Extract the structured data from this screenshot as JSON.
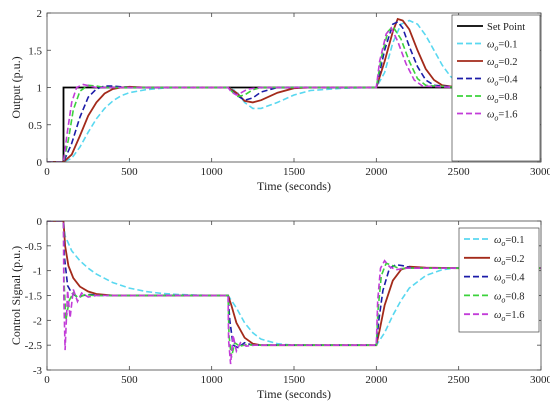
{
  "chart_data": [
    {
      "type": "line",
      "xlabel": "Time (seconds)",
      "ylabel": "Output (p.u.)",
      "xlim": [
        0,
        3000
      ],
      "ylim": [
        0,
        2
      ],
      "xticks": [
        "0",
        "500",
        "1000",
        "1500",
        "2000",
        "2500",
        "3000"
      ],
      "yticks": [
        "0",
        "0.5",
        "1",
        "1.5",
        "2"
      ],
      "grid": false,
      "legend_position": "top-right",
      "series": [
        {
          "name": "Set Point",
          "sub": "",
          "suffix": "",
          "color": "#000000",
          "dash": "solid",
          "x": [
            0,
            100,
            100,
            3000
          ],
          "y": [
            0,
            0,
            1,
            1
          ]
        },
        {
          "name": "ω",
          "sub": "o",
          "suffix": "=0.1",
          "color": "#59d8f0",
          "dash": "dashed",
          "x": [
            0,
            100,
            150,
            200,
            250,
            300,
            350,
            400,
            450,
            500,
            600,
            700,
            800,
            1000,
            1100,
            1150,
            1200,
            1250,
            1300,
            1400,
            1500,
            1600,
            1800,
            2000,
            2050,
            2100,
            2150,
            2200,
            2250,
            2300,
            2350,
            2400,
            2450,
            2500,
            2600,
            2800,
            3000
          ],
          "y": [
            0,
            0,
            0.05,
            0.2,
            0.4,
            0.58,
            0.72,
            0.82,
            0.89,
            0.93,
            0.97,
            0.99,
            1.0,
            1.0,
            1.0,
            0.95,
            0.8,
            0.72,
            0.72,
            0.8,
            0.9,
            0.96,
            0.99,
            1.0,
            1.2,
            1.6,
            1.85,
            1.9,
            1.85,
            1.7,
            1.5,
            1.3,
            1.15,
            1.06,
            1.01,
            1.0,
            1.0
          ]
        },
        {
          "name": "ω",
          "sub": "o",
          "suffix": "=0.2",
          "color": "#a32a1a",
          "dash": "solid",
          "x": [
            0,
            100,
            150,
            200,
            250,
            300,
            350,
            400,
            450,
            500,
            600,
            700,
            1100,
            1150,
            1200,
            1250,
            1300,
            1400,
            1500,
            1600,
            2000,
            2050,
            2100,
            2130,
            2160,
            2200,
            2250,
            2300,
            2350,
            2400,
            2500,
            2600,
            3000
          ],
          "y": [
            0,
            0,
            0.1,
            0.35,
            0.62,
            0.8,
            0.92,
            0.98,
            1.0,
            1.01,
            1.0,
            1.0,
            1.0,
            0.93,
            0.82,
            0.8,
            0.83,
            0.93,
            0.99,
            1.0,
            1.0,
            1.35,
            1.75,
            1.92,
            1.9,
            1.78,
            1.5,
            1.25,
            1.1,
            1.03,
            1.0,
            1.0,
            1.0
          ]
        },
        {
          "name": "ω",
          "sub": "o",
          "suffix": "=0.4",
          "color": "#1c1ca8",
          "dash": "dashed",
          "x": [
            0,
            100,
            150,
            200,
            250,
            300,
            350,
            400,
            450,
            500,
            600,
            1100,
            1150,
            1200,
            1250,
            1300,
            1400,
            2000,
            2050,
            2100,
            2130,
            2160,
            2200,
            2250,
            2300,
            2350,
            2500,
            3000
          ],
          "y": [
            0,
            0,
            0.25,
            0.6,
            0.87,
            0.98,
            1.02,
            1.02,
            1.01,
            1.0,
            1.0,
            1.0,
            0.9,
            0.83,
            0.86,
            0.94,
            1.0,
            1.0,
            1.5,
            1.85,
            1.88,
            1.8,
            1.55,
            1.28,
            1.1,
            1.03,
            1.0,
            1.0
          ]
        },
        {
          "name": "ω",
          "sub": "o",
          "suffix": "=0.8",
          "color": "#3cd23c",
          "dash": "dashed",
          "x": [
            0,
            100,
            130,
            160,
            200,
            250,
            300,
            350,
            400,
            500,
            1100,
            1130,
            1160,
            1200,
            1250,
            1300,
            2000,
            2030,
            2070,
            2100,
            2150,
            2200,
            2250,
            2300,
            2500,
            3000
          ],
          "y": [
            0,
            0,
            0.3,
            0.7,
            0.95,
            1.03,
            1.02,
            1.0,
            1.0,
            1.0,
            1.0,
            0.93,
            0.88,
            0.9,
            0.97,
            1.0,
            1.0,
            1.4,
            1.75,
            1.82,
            1.65,
            1.35,
            1.12,
            1.03,
            1.0,
            1.0
          ]
        },
        {
          "name": "ω",
          "sub": "o",
          "suffix": "=1.6",
          "color": "#c23cd8",
          "dash": "dashed",
          "x": [
            0,
            100,
            120,
            150,
            180,
            220,
            260,
            300,
            400,
            1100,
            1120,
            1150,
            1180,
            1220,
            1300,
            2000,
            2020,
            2060,
            2090,
            2130,
            2180,
            2230,
            2280,
            2500,
            3000
          ],
          "y": [
            0,
            0,
            0.35,
            0.8,
            1.0,
            1.04,
            1.02,
            1.0,
            1.0,
            1.0,
            0.94,
            0.9,
            0.93,
            0.98,
            1.0,
            1.0,
            1.35,
            1.72,
            1.8,
            1.62,
            1.32,
            1.1,
            1.02,
            1.0,
            1.0
          ]
        }
      ]
    },
    {
      "type": "line",
      "xlabel": "Time (seconds)",
      "ylabel": "Control Signal (p.u.)",
      "xlim": [
        0,
        3000
      ],
      "ylim": [
        -3,
        0
      ],
      "xticks": [
        "0",
        "500",
        "1000",
        "1500",
        "2000",
        "2500",
        "3000"
      ],
      "yticks": [
        "0",
        "-0.5",
        "-1",
        "-1.5",
        "-2",
        "-2.5",
        "-3"
      ],
      "grid": false,
      "legend_position": "top-right",
      "series": [
        {
          "name": "ω",
          "sub": "o",
          "suffix": "=0.1",
          "color": "#59d8f0",
          "dash": "dashed",
          "x": [
            0,
            100,
            110,
            150,
            200,
            250,
            300,
            400,
            500,
            600,
            700,
            800,
            1000,
            1100,
            1150,
            1200,
            1250,
            1300,
            1400,
            1500,
            1600,
            1800,
            2000,
            2050,
            2100,
            2150,
            2200,
            2300,
            2400,
            2500,
            2600,
            3000
          ],
          "y": [
            0,
            0,
            -0.3,
            -0.6,
            -0.8,
            -0.95,
            -1.07,
            -1.24,
            -1.35,
            -1.42,
            -1.46,
            -1.48,
            -1.5,
            -1.5,
            -1.75,
            -2.05,
            -2.25,
            -2.38,
            -2.47,
            -2.5,
            -2.5,
            -2.5,
            -2.5,
            -2.25,
            -1.9,
            -1.6,
            -1.35,
            -1.1,
            -0.98,
            -0.94,
            -0.93,
            -0.95
          ]
        },
        {
          "name": "ω",
          "sub": "o",
          "suffix": "=0.2",
          "color": "#a32a1a",
          "dash": "solid",
          "x": [
            0,
            100,
            110,
            130,
            160,
            200,
            250,
            300,
            400,
            500,
            1100,
            1120,
            1150,
            1200,
            1250,
            1300,
            1400,
            2000,
            2020,
            2050,
            2100,
            2150,
            2200,
            2300,
            2500,
            3000
          ],
          "y": [
            0,
            0,
            -0.5,
            -0.9,
            -1.15,
            -1.32,
            -1.42,
            -1.47,
            -1.5,
            -1.5,
            -1.5,
            -1.7,
            -2.05,
            -2.35,
            -2.47,
            -2.5,
            -2.5,
            -2.5,
            -2.2,
            -1.7,
            -1.2,
            -0.98,
            -0.92,
            -0.94,
            -0.95,
            -0.95
          ]
        },
        {
          "name": "ω",
          "sub": "o",
          "suffix": "=0.4",
          "color": "#1c1ca8",
          "dash": "dashed",
          "x": [
            0,
            100,
            105,
            125,
            150,
            180,
            220,
            260,
            320,
            400,
            1100,
            1110,
            1130,
            1160,
            1200,
            1250,
            1300,
            2000,
            2015,
            2040,
            2080,
            2120,
            2160,
            2220,
            2300,
            3000
          ],
          "y": [
            0,
            0,
            -0.7,
            -1.3,
            -1.45,
            -1.52,
            -1.5,
            -1.48,
            -1.5,
            -1.5,
            -1.5,
            -2.0,
            -2.5,
            -2.55,
            -2.45,
            -2.5,
            -2.5,
            -2.5,
            -2.0,
            -1.4,
            -0.95,
            -0.88,
            -0.9,
            -0.95,
            -0.95,
            -0.95
          ]
        },
        {
          "name": "ω",
          "sub": "o",
          "suffix": "=0.8",
          "color": "#3cd23c",
          "dash": "dashed",
          "x": [
            0,
            100,
            103,
            115,
            135,
            160,
            190,
            230,
            280,
            400,
            1100,
            1105,
            1120,
            1140,
            1170,
            1210,
            1260,
            2000,
            2010,
            2030,
            2060,
            2100,
            2140,
            2200,
            3000
          ],
          "y": [
            0,
            0,
            -1.2,
            -2.0,
            -1.6,
            -1.45,
            -1.55,
            -1.48,
            -1.5,
            -1.5,
            -1.5,
            -2.3,
            -2.75,
            -2.45,
            -2.52,
            -2.49,
            -2.5,
            -2.5,
            -1.8,
            -1.1,
            -0.85,
            -0.9,
            -0.96,
            -0.95,
            -0.95
          ]
        },
        {
          "name": "ω",
          "sub": "o",
          "suffix": "=1.6",
          "color": "#c23cd8",
          "dash": "dashed",
          "x": [
            0,
            100,
            102,
            110,
            125,
            140,
            160,
            185,
            210,
            250,
            300,
            400,
            1100,
            1103,
            1115,
            1130,
            1150,
            1175,
            1210,
            1260,
            2000,
            2008,
            2025,
            2050,
            2080,
            2120,
            2180,
            3000
          ],
          "y": [
            0,
            0,
            -1.5,
            -2.6,
            -1.4,
            -1.95,
            -1.38,
            -1.62,
            -1.45,
            -1.53,
            -1.5,
            -1.5,
            -1.5,
            -2.4,
            -2.88,
            -2.3,
            -2.62,
            -2.45,
            -2.52,
            -2.5,
            -2.5,
            -1.6,
            -0.95,
            -0.8,
            -0.92,
            -0.98,
            -0.95,
            -0.95
          ]
        }
      ]
    }
  ]
}
